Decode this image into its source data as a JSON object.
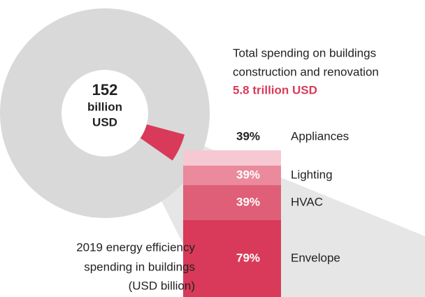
{
  "donut": {
    "center_value": "152",
    "center_lines": [
      "billion",
      "USD"
    ],
    "caption_lines": [
      "2019 energy efficiency",
      "spending in buildings",
      "(USD billion)"
    ]
  },
  "total": {
    "lines": [
      "Total spending on buildings",
      "construction and renovation"
    ],
    "amount": "5.8 trillion USD"
  },
  "breakdown": [
    {
      "pct": "39%",
      "label": "Appliances"
    },
    {
      "pct": "39%",
      "label": "Lighting"
    },
    {
      "pct": "39%",
      "label": "HVAC"
    },
    {
      "pct": "79%",
      "label": "Envelope"
    }
  ]
}
